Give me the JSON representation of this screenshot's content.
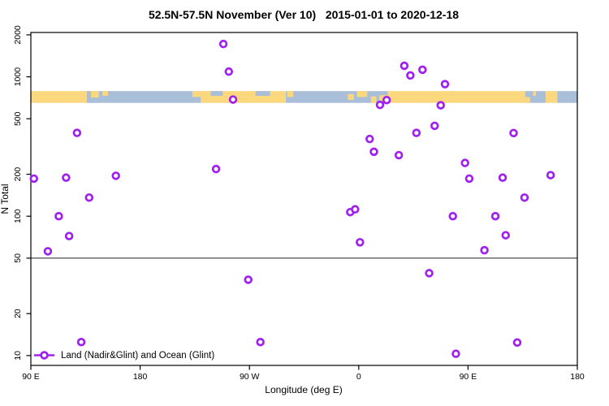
{
  "chart_data": {
    "type": "scatter",
    "title": "52.5N-57.5N November (Ver 10)   2015-01-01 to 2020-12-18",
    "xlabel": "Longitude (deg E)",
    "ylabel": "N Total",
    "y_scale": "log10",
    "xlim": [
      -270,
      180
    ],
    "ylim": [
      8.5,
      2080
    ],
    "grid": false,
    "x_ticks": [
      {
        "value": -270,
        "label": "90 E"
      },
      {
        "value": -180,
        "label": "180"
      },
      {
        "value": -90,
        "label": "90 W"
      },
      {
        "value": 0,
        "label": "0"
      },
      {
        "value": 90,
        "label": "90 E"
      },
      {
        "value": 180,
        "label": "180"
      }
    ],
    "y_ticks": [
      {
        "value": 2000,
        "label": "2000"
      },
      {
        "value": 1000,
        "label": "1000"
      },
      {
        "value": 500,
        "label": "500"
      },
      {
        "value": 200,
        "label": "200"
      },
      {
        "value": 100,
        "label": "100"
      },
      {
        "value": 50,
        "label": "50"
      },
      {
        "value": 20,
        "label": "20"
      },
      {
        "value": 10,
        "label": "10"
      }
    ],
    "reference_line_n": 50,
    "legend": {
      "label": "Land (Nadir&Glint) and Ocean (Glint)",
      "position": "bottom-left"
    },
    "points_format": "[longitude_deg_E_display, N_total]",
    "points": [
      [
        -111.5,
        1720
      ],
      [
        -107,
        1090
      ],
      [
        -103.5,
        687
      ],
      [
        37.5,
        1200
      ],
      [
        42.5,
        1023
      ],
      [
        52.5,
        1124
      ],
      [
        71,
        886
      ],
      [
        23,
        681
      ],
      [
        17.5,
        629
      ],
      [
        67.5,
        625
      ],
      [
        -232,
        396
      ],
      [
        127.5,
        395
      ],
      [
        62.5,
        445
      ],
      [
        47.5,
        396
      ],
      [
        9,
        358
      ],
      [
        12.5,
        290
      ],
      [
        33,
        274
      ],
      [
        -117.5,
        218
      ],
      [
        -267.5,
        186
      ],
      [
        -241,
        189
      ],
      [
        -200,
        195
      ],
      [
        87.5,
        241
      ],
      [
        118.5,
        189
      ],
      [
        158,
        197
      ],
      [
        91,
        186
      ],
      [
        -222,
        136
      ],
      [
        136.5,
        136
      ],
      [
        -7,
        107
      ],
      [
        -3,
        112
      ],
      [
        -247,
        100
      ],
      [
        77.5,
        100
      ],
      [
        112.5,
        100
      ],
      [
        -238.5,
        72
      ],
      [
        121,
        73
      ],
      [
        -256,
        56
      ],
      [
        103.5,
        57
      ],
      [
        1,
        65
      ],
      [
        -91,
        35
      ],
      [
        58,
        39
      ],
      [
        -81,
        12.5
      ],
      [
        -228.5,
        12.5
      ],
      [
        80,
        10.3
      ],
      [
        130.5,
        12.4
      ]
    ],
    "map_strip": {
      "n_range": [
        650,
        790
      ],
      "land_color": "#FBD77E",
      "ocean_color": "#A9BED9",
      "segments": [
        {
          "from": -270,
          "to": -224,
          "type": "land"
        },
        {
          "from": -224,
          "to": -130,
          "type": "ocean"
        },
        {
          "from": -130,
          "to": -60,
          "type": "land"
        },
        {
          "from": -60,
          "to": 24,
          "type": "ocean"
        },
        {
          "from": 24,
          "to": 137,
          "type": "land"
        },
        {
          "from": 137,
          "to": 154,
          "type": "ocean"
        },
        {
          "from": 154,
          "to": 163.5,
          "type": "land"
        },
        {
          "from": 163.5,
          "to": 180,
          "type": "ocean"
        }
      ],
      "specks": [
        {
          "from": -220.5,
          "to": -214,
          "type": "land",
          "align": "top",
          "frac": 0.55
        },
        {
          "from": -211,
          "to": -206.5,
          "type": "land",
          "align": "top",
          "frac": 0.4
        },
        {
          "from": -137,
          "to": -130,
          "type": "land",
          "align": "top",
          "frac": 0.5
        },
        {
          "from": -122,
          "to": -112,
          "type": "ocean",
          "align": "top",
          "frac": 0.4
        },
        {
          "from": -85,
          "to": -73,
          "type": "ocean",
          "align": "top",
          "frac": 0.4
        },
        {
          "from": -59,
          "to": -54,
          "type": "land",
          "align": "top",
          "frac": 0.5
        },
        {
          "from": -9,
          "to": -4,
          "type": "land",
          "align": "mid",
          "frac": 0.5
        },
        {
          "from": -1.5,
          "to": 7,
          "type": "land",
          "align": "top",
          "frac": 0.5
        },
        {
          "from": 10,
          "to": 14.5,
          "type": "land",
          "align": "bottom",
          "frac": 0.55
        },
        {
          "from": 17,
          "to": 24,
          "type": "land",
          "align": "bottom",
          "frac": 0.65
        },
        {
          "from": 137,
          "to": 141,
          "type": "land",
          "align": "bottom",
          "frac": 0.5
        },
        {
          "from": 143.5,
          "to": 146,
          "type": "land",
          "align": "top",
          "frac": 0.4
        }
      ]
    },
    "colors": {
      "marker": "#A020F0",
      "marker_fill": "#FFFFFF",
      "reference_line": "#4D4D4D",
      "box": "#000000"
    }
  }
}
